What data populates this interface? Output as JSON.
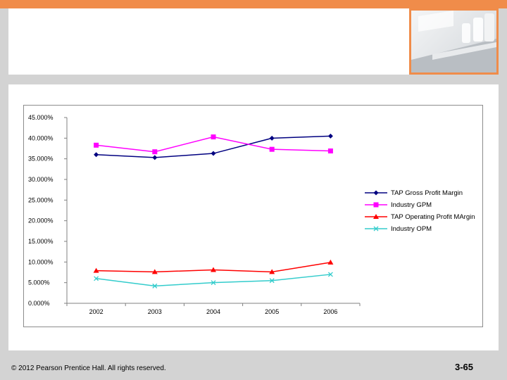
{
  "slide": {
    "copyright": "© 2012 Pearson Prentice Hall. All rights reserved.",
    "page_number": "3-65",
    "accent_color": "#f08c4a"
  },
  "chart_data": {
    "type": "line",
    "title": "",
    "xlabel": "",
    "ylabel": "",
    "categories": [
      "2002",
      "2003",
      "2004",
      "2005",
      "2006"
    ],
    "ylim": [
      0,
      45
    ],
    "yticks": [
      "0.000%",
      "5.000%",
      "10.000%",
      "15.000%",
      "20.000%",
      "25.000%",
      "30.000%",
      "35.000%",
      "40.000%",
      "45.000%"
    ],
    "grid": false,
    "legend_position": "right",
    "series": [
      {
        "name": "TAP Gross Profit Margin",
        "values": [
          36.0,
          35.3,
          36.3,
          40.0,
          40.5
        ],
        "color": "#000080",
        "marker": "diamond"
      },
      {
        "name": "Industry GPM",
        "values": [
          38.3,
          36.7,
          40.3,
          37.3,
          36.9
        ],
        "color": "#ff00ff",
        "marker": "square"
      },
      {
        "name": "TAP Operating Profit MArgin",
        "values": [
          7.9,
          7.6,
          8.1,
          7.6,
          9.9
        ],
        "color": "#ff0000",
        "marker": "triangle"
      },
      {
        "name": "Industry OPM",
        "values": [
          6.0,
          4.2,
          5.0,
          5.5,
          7.0
        ],
        "color": "#33cccc",
        "marker": "x"
      }
    ]
  }
}
